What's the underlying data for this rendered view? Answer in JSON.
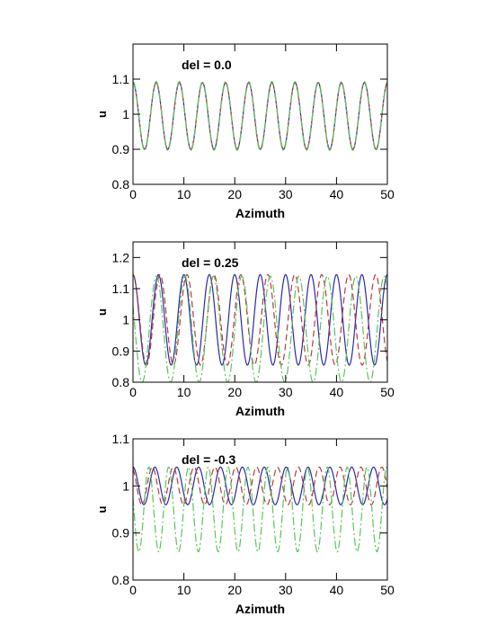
{
  "chart_data": [
    {
      "type": "line",
      "annotation": "del = 0.0",
      "xlabel": "Azimuth",
      "ylabel": "u",
      "xlim": [
        0,
        50
      ],
      "ylim": [
        0.8,
        1.2
      ],
      "xticks": [
        0,
        10,
        20,
        30,
        40,
        50
      ],
      "yticks": [
        0.8,
        0.9,
        1.0,
        1.1
      ],
      "ytick_labels": [
        "0.8",
        "0.9",
        "1",
        "1.1"
      ],
      "grid": false,
      "series": [
        {
          "color": "#2a2aa8",
          "style": "solid",
          "mean": 0.995,
          "amplitude": 0.095,
          "period": 4.55,
          "phase": 0.0,
          "xmin": 0,
          "xmax": 50
        },
        {
          "color": "#b83a3a",
          "style": "dashed",
          "mean": 0.995,
          "amplitude": 0.095,
          "period": 4.55,
          "phase": 0.0,
          "xmin": 0,
          "xmax": 50
        },
        {
          "color": "#5cc45c",
          "style": "dashdot",
          "mean": 0.995,
          "amplitude": 0.098,
          "period": 4.55,
          "phase": 0.0,
          "xmin": 0,
          "xmax": 50
        }
      ]
    },
    {
      "type": "line",
      "annotation": "del = 0.25",
      "xlabel": "Azimuth",
      "ylabel": "u",
      "xlim": [
        0,
        50
      ],
      "ylim": [
        0.8,
        1.25
      ],
      "xticks": [
        0,
        10,
        20,
        30,
        40,
        50
      ],
      "yticks": [
        0.8,
        0.9,
        1.0,
        1.1,
        1.2
      ],
      "ytick_labels": [
        "0.8",
        "0.9",
        "1",
        "1.1",
        "1.2"
      ],
      "grid": false,
      "series": [
        {
          "color": "#2a2aa8",
          "style": "solid",
          "mean": 1.0,
          "amplitude": 0.145,
          "period": 5.0,
          "phase": 0.0,
          "xmin": 0,
          "xmax": 50
        },
        {
          "color": "#b83a3a",
          "style": "dashed",
          "mean": 1.0,
          "amplitude": 0.145,
          "period": 5.3,
          "phase": 0.0,
          "xmin": 0,
          "xmax": 50
        },
        {
          "color": "#5cc45c",
          "style": "dashdot",
          "mean": 0.97,
          "amplitude": 0.17,
          "period": 5.6,
          "phase": -1.0,
          "xmin": 0,
          "xmax": 50
        }
      ]
    },
    {
      "type": "line",
      "annotation": "del = -0.3",
      "xlabel": "Azimuth",
      "ylabel": "u",
      "xlim": [
        0,
        50
      ],
      "ylim": [
        0.8,
        1.1
      ],
      "xticks": [
        0,
        10,
        20,
        30,
        40,
        50
      ],
      "yticks": [
        0.8,
        0.9,
        1.0,
        1.1
      ],
      "ytick_labels": [
        "0.8",
        "0.9",
        "1",
        "1.1"
      ],
      "grid": false,
      "series": [
        {
          "color": "#2a2aa8",
          "style": "solid",
          "mean": 1.0,
          "amplitude": 0.04,
          "period": 4.3,
          "phase": 0.0,
          "xmin": 0,
          "xmax": 50
        },
        {
          "color": "#b83a3a",
          "style": "dashed",
          "mean": 1.0,
          "amplitude": 0.04,
          "period": 4.1,
          "phase": -0.3,
          "xmin": 0,
          "xmax": 50
        },
        {
          "color": "#5cc45c",
          "style": "dashdot",
          "mean": 0.95,
          "amplitude": 0.09,
          "period": 3.9,
          "phase": -0.8,
          "xmin": 0,
          "xmax": 50
        }
      ]
    }
  ]
}
